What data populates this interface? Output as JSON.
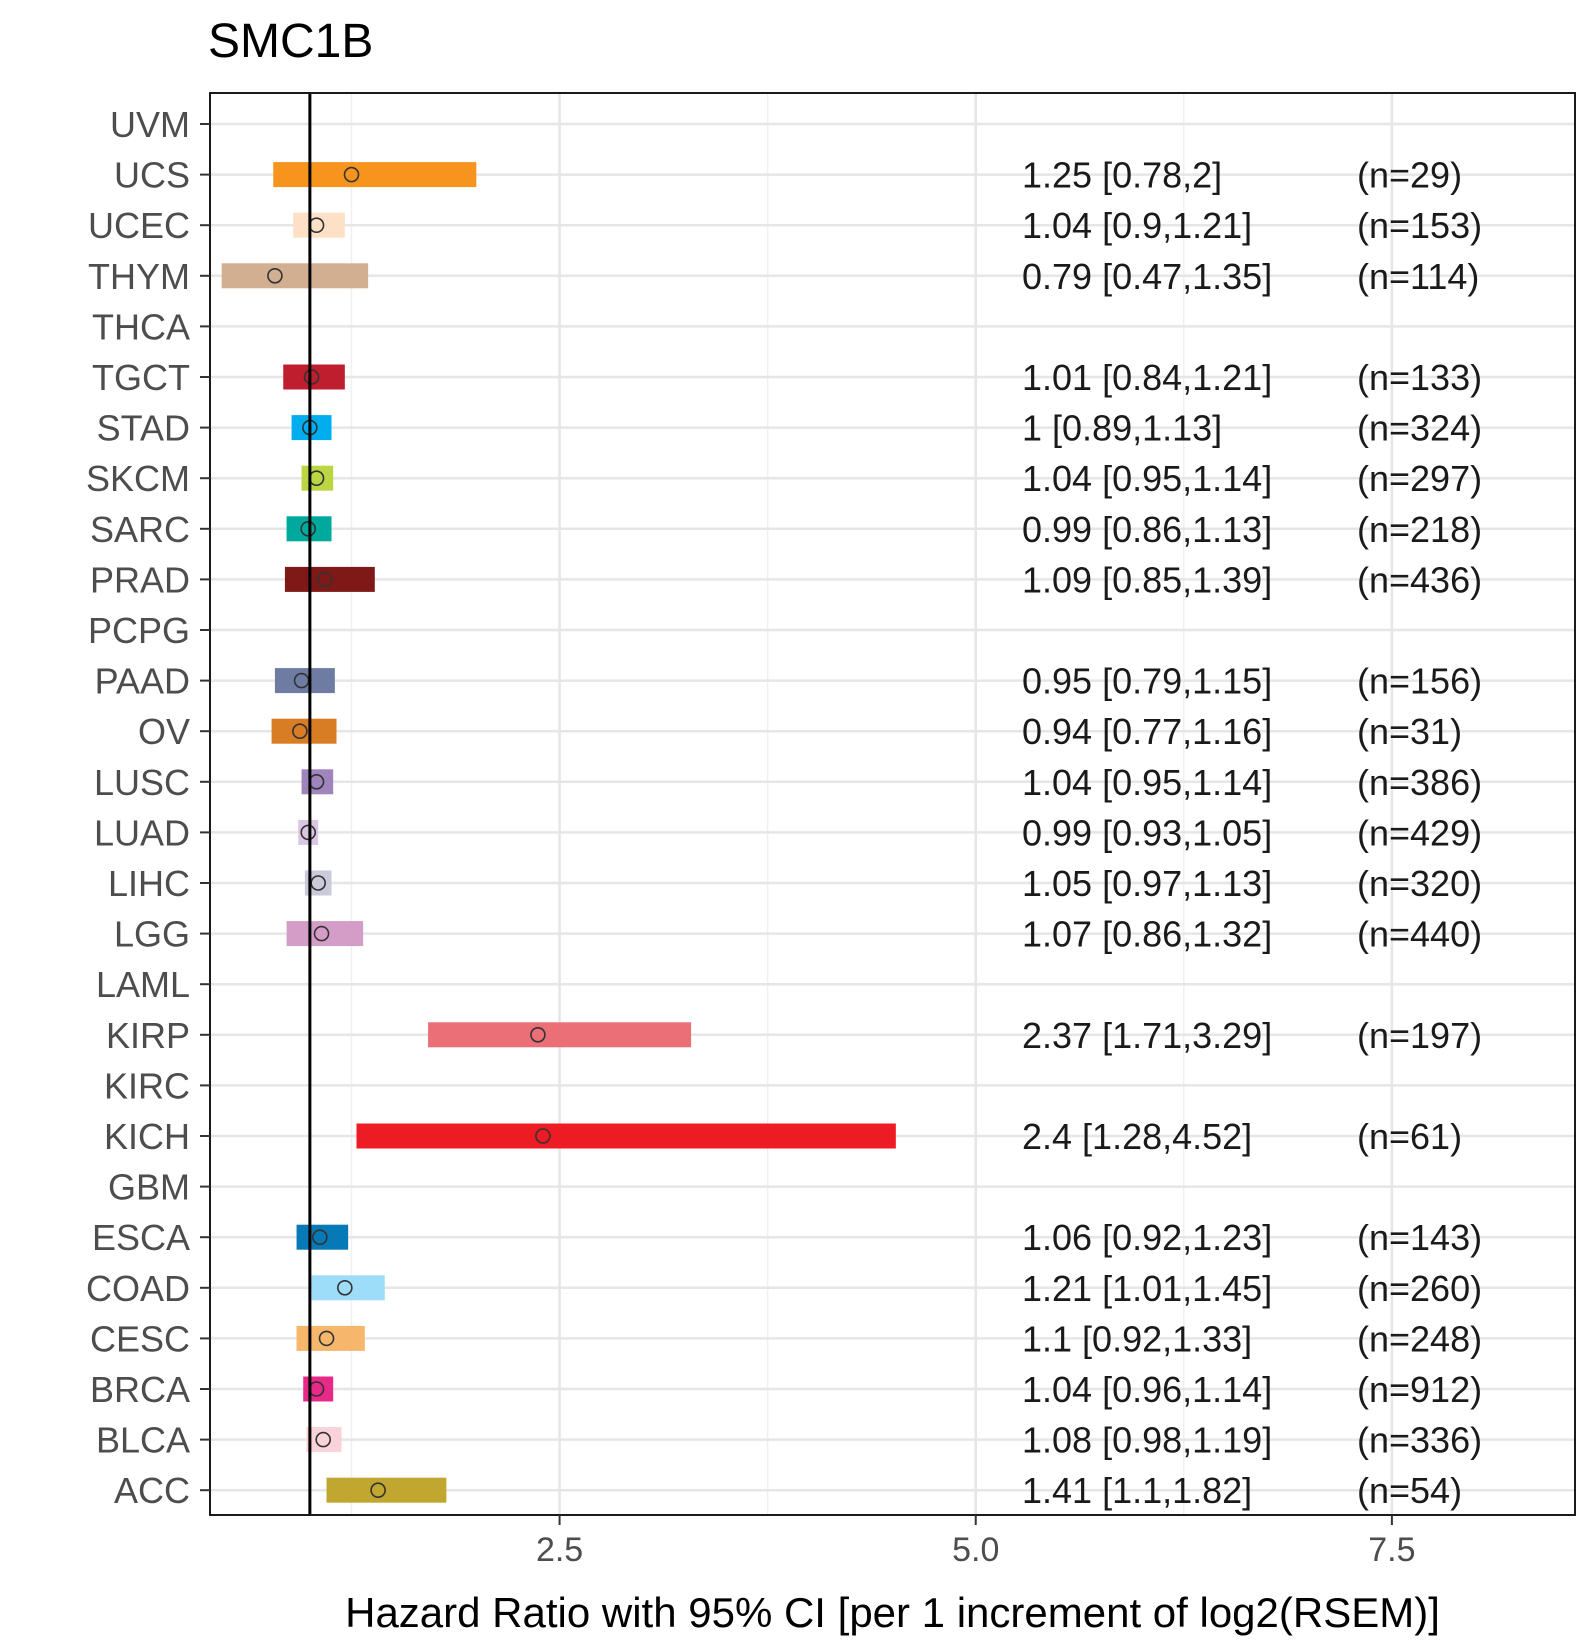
{
  "chart_data": {
    "type": "forest",
    "title": "SMC1B",
    "xlabel": "Hazard Ratio with 95% CI [per 1 increment of log2(RSEM)]",
    "ylabel": "",
    "xlim": [
      0.4,
      8.6
    ],
    "x_ticks": [
      2.5,
      5.0,
      7.5
    ],
    "x_tick_labels": [
      "2.5",
      "5.0",
      "7.5"
    ],
    "reference_line": 1,
    "grid": true,
    "rows": [
      {
        "cohort": "UVM",
        "hr": null,
        "lo": null,
        "hi": null,
        "label": "",
        "n": "",
        "color": ""
      },
      {
        "cohort": "UCS",
        "hr": 1.25,
        "lo": 0.78,
        "hi": 2.0,
        "label": "1.25 [0.78,2]",
        "n": "(n=29)",
        "color": "#F7941D"
      },
      {
        "cohort": "UCEC",
        "hr": 1.04,
        "lo": 0.9,
        "hi": 1.21,
        "label": "1.04 [0.9,1.21]",
        "n": "(n=153)",
        "color": "#FDE0C5"
      },
      {
        "cohort": "THYM",
        "hr": 0.79,
        "lo": 0.47,
        "hi": 1.35,
        "label": "0.79 [0.47,1.35]",
        "n": "(n=114)",
        "color": "#D2AF91"
      },
      {
        "cohort": "THCA",
        "hr": null,
        "lo": null,
        "hi": null,
        "label": "",
        "n": "",
        "color": ""
      },
      {
        "cohort": "TGCT",
        "hr": 1.01,
        "lo": 0.84,
        "hi": 1.21,
        "label": "1.01 [0.84,1.21]",
        "n": "(n=133)",
        "color": "#BE1E2D"
      },
      {
        "cohort": "STAD",
        "hr": 1.0,
        "lo": 0.89,
        "hi": 1.13,
        "label": "1 [0.89,1.13]",
        "n": "(n=324)",
        "color": "#00AEEF"
      },
      {
        "cohort": "SKCM",
        "hr": 1.04,
        "lo": 0.95,
        "hi": 1.14,
        "label": "1.04 [0.95,1.14]",
        "n": "(n=297)",
        "color": "#BBD642"
      },
      {
        "cohort": "SARC",
        "hr": 0.99,
        "lo": 0.86,
        "hi": 1.13,
        "label": "0.99 [0.86,1.13]",
        "n": "(n=218)",
        "color": "#00A99D"
      },
      {
        "cohort": "PRAD",
        "hr": 1.09,
        "lo": 0.85,
        "hi": 1.39,
        "label": "1.09 [0.85,1.39]",
        "n": "(n=436)",
        "color": "#7E1918"
      },
      {
        "cohort": "PCPG",
        "hr": null,
        "lo": null,
        "hi": null,
        "label": "",
        "n": "",
        "color": ""
      },
      {
        "cohort": "PAAD",
        "hr": 0.95,
        "lo": 0.79,
        "hi": 1.15,
        "label": "0.95 [0.79,1.15]",
        "n": "(n=156)",
        "color": "#6E7BA2"
      },
      {
        "cohort": "OV",
        "hr": 0.94,
        "lo": 0.77,
        "hi": 1.16,
        "label": "0.94 [0.77,1.16]",
        "n": "(n=31)",
        "color": "#D97D25"
      },
      {
        "cohort": "LUSC",
        "hr": 1.04,
        "lo": 0.95,
        "hi": 1.14,
        "label": "1.04 [0.95,1.14]",
        "n": "(n=386)",
        "color": "#A084BD"
      },
      {
        "cohort": "LUAD",
        "hr": 0.99,
        "lo": 0.93,
        "hi": 1.05,
        "label": "0.99 [0.93,1.05]",
        "n": "(n=429)",
        "color": "#D9C6E2"
      },
      {
        "cohort": "LIHC",
        "hr": 1.05,
        "lo": 0.97,
        "hi": 1.13,
        "label": "1.05 [0.97,1.13]",
        "n": "(n=320)",
        "color": "#CACADA"
      },
      {
        "cohort": "LGG",
        "hr": 1.07,
        "lo": 0.86,
        "hi": 1.32,
        "label": "1.07 [0.86,1.32]",
        "n": "(n=440)",
        "color": "#D49DC8"
      },
      {
        "cohort": "LAML",
        "hr": null,
        "lo": null,
        "hi": null,
        "label": "",
        "n": "",
        "color": ""
      },
      {
        "cohort": "KIRP",
        "hr": 2.37,
        "lo": 1.71,
        "hi": 3.29,
        "label": "2.37 [1.71,3.29]",
        "n": "(n=197)",
        "color": "#EA6F77"
      },
      {
        "cohort": "KIRC",
        "hr": null,
        "lo": null,
        "hi": null,
        "label": "",
        "n": "",
        "color": ""
      },
      {
        "cohort": "KICH",
        "hr": 2.4,
        "lo": 1.28,
        "hi": 4.52,
        "label": "2.4 [1.28,4.52]",
        "n": "(n=61)",
        "color": "#ED1C24"
      },
      {
        "cohort": "GBM",
        "hr": null,
        "lo": null,
        "hi": null,
        "label": "",
        "n": "",
        "color": ""
      },
      {
        "cohort": "ESCA",
        "hr": 1.06,
        "lo": 0.92,
        "hi": 1.23,
        "label": "1.06 [0.92,1.23]",
        "n": "(n=143)",
        "color": "#0779B7"
      },
      {
        "cohort": "COAD",
        "hr": 1.21,
        "lo": 1.01,
        "hi": 1.45,
        "label": "1.21 [1.01,1.45]",
        "n": "(n=260)",
        "color": "#9EDDF9"
      },
      {
        "cohort": "CESC",
        "hr": 1.1,
        "lo": 0.92,
        "hi": 1.33,
        "label": "1.1 [0.92,1.33]",
        "n": "(n=248)",
        "color": "#F6B66B"
      },
      {
        "cohort": "BRCA",
        "hr": 1.04,
        "lo": 0.96,
        "hi": 1.14,
        "label": "1.04 [0.96,1.14]",
        "n": "(n=912)",
        "color": "#E7298A"
      },
      {
        "cohort": "BLCA",
        "hr": 1.08,
        "lo": 0.98,
        "hi": 1.19,
        "label": "1.08 [0.98,1.19]",
        "n": "(n=336)",
        "color": "#FAD2D9"
      },
      {
        "cohort": "ACC",
        "hr": 1.41,
        "lo": 1.1,
        "hi": 1.82,
        "label": "1.41 [1.1,1.82]",
        "n": "(n=54)",
        "color": "#C1A72F"
      }
    ]
  }
}
